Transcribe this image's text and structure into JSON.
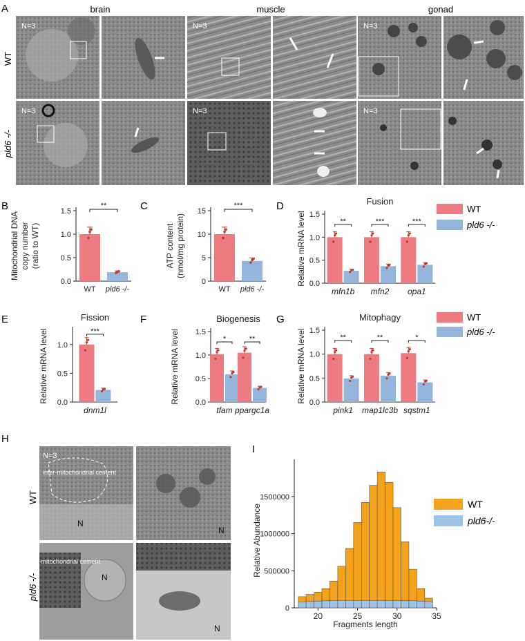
{
  "panel_letters": [
    "A",
    "B",
    "C",
    "D",
    "E",
    "F",
    "G",
    "H",
    "I"
  ],
  "panel_a": {
    "tissues": [
      "brain",
      "muscle",
      "gonad"
    ],
    "row_labels": [
      "WT",
      "pld6 -/-"
    ],
    "n_labels": [
      "N=3",
      "N=3",
      "N=3",
      "N=3",
      "N=3",
      "N=3"
    ]
  },
  "panel_h": {
    "row_labels": [
      "WT",
      "pld6 -/-"
    ],
    "n_label": "N=3",
    "annotations": [
      "inter-mitochondrial cement",
      "inter-mitochondrial cement",
      "N",
      "N",
      "N",
      "N"
    ]
  },
  "legend": {
    "wt": "WT",
    "mut": "pld6 -/-",
    "mut_i": "pld6-/-"
  },
  "colors": {
    "wt": "#ee7a82",
    "mut": "#94b6dd",
    "dot": "#c0392b",
    "hist_wt": "#f5a21b",
    "hist_mut": "#9dc3e6"
  },
  "chart_data": [
    {
      "id": "B",
      "type": "bar",
      "categories": [
        "WT",
        "pld6 -/-"
      ],
      "values": [
        1.0,
        0.19
      ],
      "ylabel": "Mitochondrial DNA copy number (ratio to WT)",
      "ylim": [
        0,
        1.5
      ],
      "yticks": [
        "0.0",
        "0.5",
        "1.0",
        "1.5"
      ],
      "significance": [
        "**"
      ]
    },
    {
      "id": "C",
      "type": "bar",
      "categories": [
        "WT",
        "pld6 -/-"
      ],
      "values": [
        10.0,
        4.3
      ],
      "ylabel": "ATP content (nmol/mg protein)",
      "ylim": [
        0,
        15
      ],
      "yticks": [
        "0",
        "5",
        "10",
        "15"
      ],
      "significance": [
        "***"
      ]
    },
    {
      "id": "D",
      "type": "bar",
      "title": "Fusion",
      "categories": [
        "mfn1b",
        "mfn2",
        "opa1"
      ],
      "series": [
        {
          "name": "WT",
          "values": [
            1.0,
            1.0,
            1.0
          ]
        },
        {
          "name": "pld6 -/-",
          "values": [
            0.27,
            0.37,
            0.4
          ]
        }
      ],
      "ylabel": "Relative mRNA level",
      "ylim": [
        0,
        1.5
      ],
      "yticks": [
        "0.0",
        "0.5",
        "1.0",
        "1.5"
      ],
      "significance": [
        "**",
        "***",
        "***"
      ]
    },
    {
      "id": "E",
      "type": "bar",
      "title": "Fission",
      "categories": [
        "dnm1l"
      ],
      "series": [
        {
          "name": "WT",
          "values": [
            1.0
          ]
        },
        {
          "name": "pld6 -/-",
          "values": [
            0.21
          ]
        }
      ],
      "ylabel": "Relative mRNA level",
      "ylim": [
        0,
        1.25
      ],
      "yticks": [
        "0.0",
        "0.5",
        "1.0"
      ],
      "significance": [
        "***"
      ]
    },
    {
      "id": "F",
      "type": "bar",
      "title": "Biogenesis",
      "categories": [
        "tfam",
        "ppargc1a"
      ],
      "series": [
        {
          "name": "WT",
          "values": [
            1.02,
            1.05
          ]
        },
        {
          "name": "pld6 -/-",
          "values": [
            0.59,
            0.3
          ]
        }
      ],
      "ylabel": "Relative mRNA level",
      "ylim": [
        0,
        1.5
      ],
      "yticks": [
        "0.0",
        "0.5",
        "1.0",
        "1.5"
      ],
      "significance": [
        "*",
        "**"
      ]
    },
    {
      "id": "G",
      "type": "bar",
      "title": "Mitophagy",
      "categories": [
        "pink1",
        "map1lc3b",
        "sqstm1"
      ],
      "series": [
        {
          "name": "WT",
          "values": [
            1.0,
            1.0,
            1.02
          ]
        },
        {
          "name": "pld6 -/-",
          "values": [
            0.49,
            0.55,
            0.41
          ]
        }
      ],
      "ylabel": "Relative mRNA level",
      "ylim": [
        0,
        1.5
      ],
      "yticks": [
        "0.0",
        "0.5",
        "1.0",
        "1.5"
      ],
      "significance": [
        "**",
        "**",
        "*"
      ]
    },
    {
      "id": "I",
      "type": "histogram",
      "xlabel": "Fragments length",
      "ylabel": "Relative Abundance",
      "x": [
        18,
        19,
        20,
        21,
        22,
        23,
        24,
        25,
        26,
        27,
        28,
        29,
        30,
        31,
        32,
        33,
        34
      ],
      "series": [
        {
          "name": "WT",
          "values": [
            150000,
            180000,
            210000,
            260000,
            360000,
            560000,
            800000,
            1150000,
            1420000,
            1650000,
            1830000,
            1690000,
            1350000,
            890000,
            520000,
            260000,
            130000
          ]
        },
        {
          "name": "pld6-/-",
          "values": [
            80000,
            85000,
            90000,
            95000,
            100000,
            100000,
            100000,
            100000,
            100000,
            100000,
            100000,
            100000,
            100000,
            95000,
            95000,
            90000,
            85000
          ]
        }
      ],
      "xlim": [
        17,
        35
      ],
      "ylim": [
        0,
        2000000
      ],
      "xticks": [
        "20",
        "25",
        "30",
        "35"
      ],
      "yticks": [
        "0",
        "500000",
        "1000000",
        "1500000"
      ]
    }
  ]
}
